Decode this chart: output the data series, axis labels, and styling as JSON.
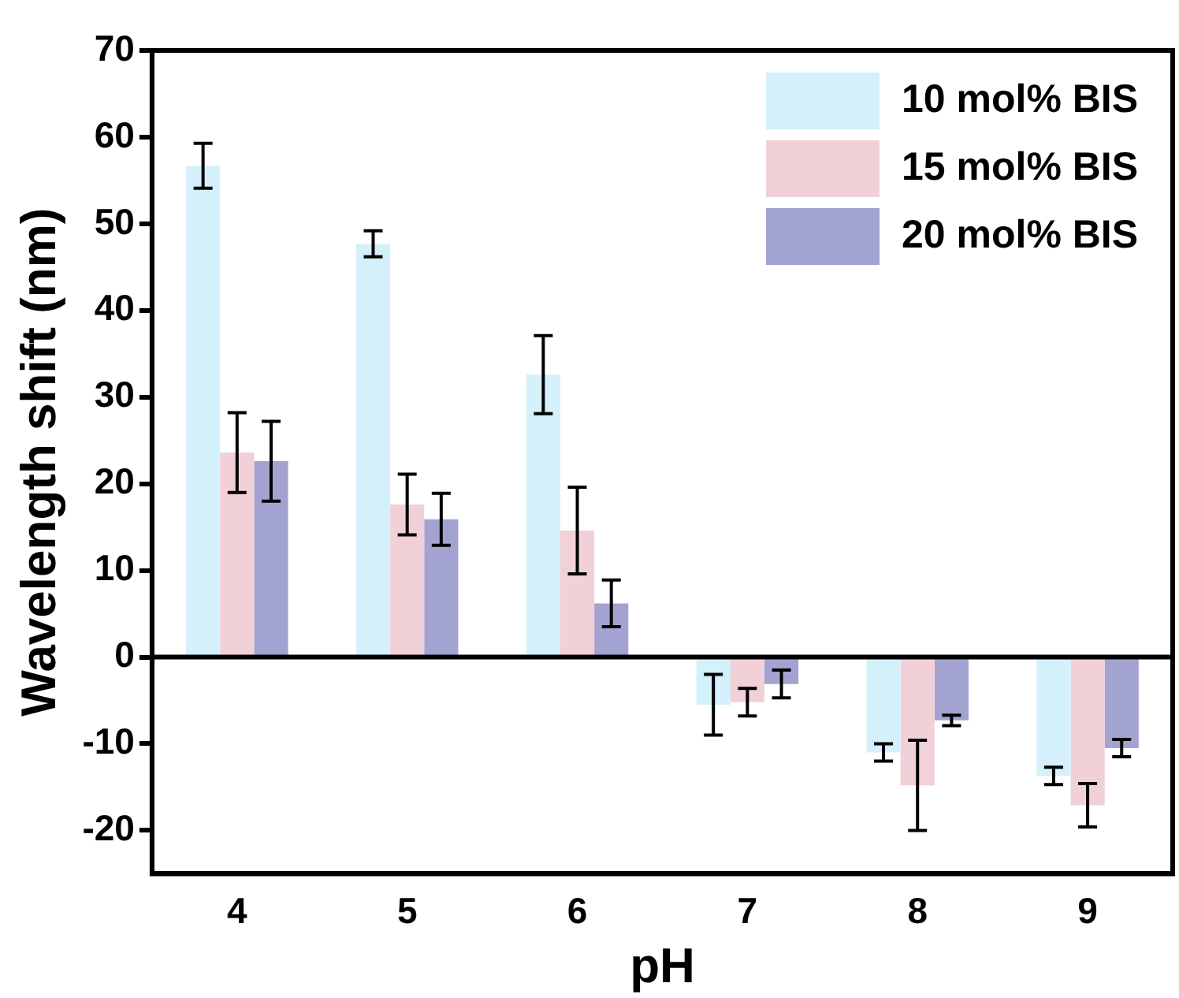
{
  "chart_data": {
    "type": "bar",
    "xlabel": "pH",
    "ylabel": "Wavelength shift (nm)",
    "categories": [
      "4",
      "5",
      "6",
      "7",
      "8",
      "9"
    ],
    "series": [
      {
        "name": "10 mol% BIS",
        "color": "#d4f0fb",
        "values": [
          56.7,
          47.7,
          32.6,
          -5.5,
          -11.0,
          -13.7
        ],
        "errors": [
          2.6,
          1.5,
          4.5,
          3.5,
          1.0,
          1.0
        ]
      },
      {
        "name": "15 mol% BIS",
        "color": "#f2d0d8",
        "values": [
          23.6,
          17.6,
          14.6,
          -5.2,
          -14.8,
          -17.1
        ],
        "errors": [
          4.6,
          3.5,
          5.0,
          1.6,
          5.2,
          2.5
        ]
      },
      {
        "name": "20 mol% BIS",
        "color": "#a3a3d1",
        "values": [
          22.6,
          15.9,
          6.2,
          -3.1,
          -7.3,
          -10.5
        ],
        "errors": [
          4.6,
          3.0,
          2.7,
          1.6,
          0.6,
          1.0
        ]
      }
    ],
    "ylim": [
      -25,
      70
    ],
    "yticks": [
      -20,
      -10,
      0,
      10,
      20,
      30,
      40,
      50,
      60,
      70
    ],
    "ref_lines": [
      {
        "axis": "y",
        "value": 0,
        "color": "#000000"
      }
    ],
    "legend": "top right",
    "grid": false
  }
}
